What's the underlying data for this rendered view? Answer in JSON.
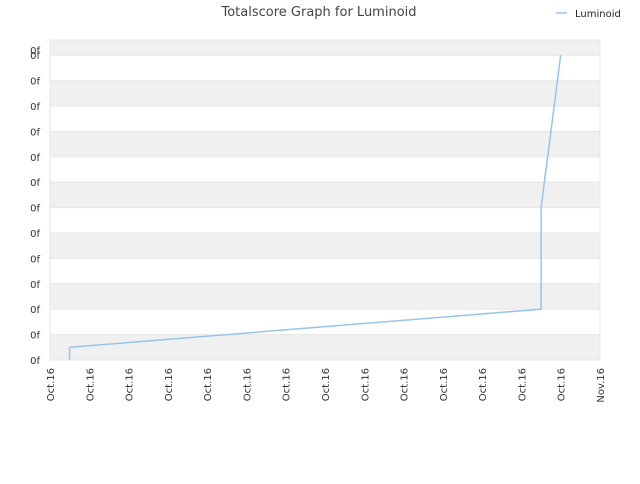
{
  "chart_data": {
    "type": "line",
    "title": "Totalscore Graph for Luminoid",
    "xlabel": "",
    "ylabel": "",
    "y_tick_labels": [
      "0f",
      "0f",
      "0f",
      "0f",
      "0f",
      "0f",
      "0f",
      "0f",
      "0f",
      "0f",
      "0f",
      "0f",
      "0f",
      "0f"
    ],
    "x_tick_labels": [
      "Oct.16",
      "Oct.16",
      "Oct.16",
      "Oct.16",
      "Oct.16",
      "Oct.16",
      "Oct.16",
      "Oct.16",
      "Oct.16",
      "Oct.16",
      "Oct.16",
      "Oct.16",
      "Oct.16",
      "Oct.16",
      "Nov.16"
    ],
    "x_range": [
      0,
      14
    ],
    "y_range": [
      0,
      12.6
    ],
    "grid": true,
    "banded_background": true,
    "legend_position": "top-right",
    "series": [
      {
        "name": "Luminoid",
        "color": "#95c5ee",
        "x": [
          0.5,
          0.5,
          12.5,
          12.5,
          13.0
        ],
        "y": [
          0.0,
          0.5,
          2.0,
          6.0,
          12.0
        ]
      }
    ]
  }
}
